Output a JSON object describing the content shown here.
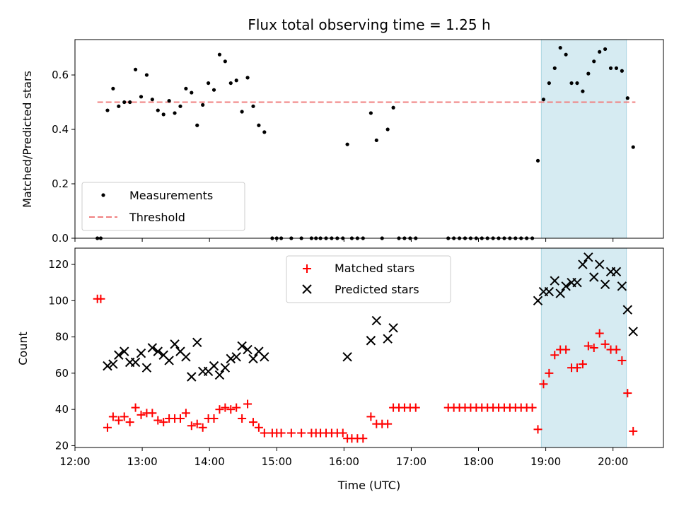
{
  "colors": {
    "measurements": "#000000",
    "threshold": "#f08080",
    "matched": "#ff0000",
    "predicted": "#000000",
    "shade": "#add8e6"
  },
  "chart_data": [
    {
      "type": "scatter",
      "title": "Flux total observing time = 1.25 h",
      "xlabel": "",
      "ylabel": "Matched/Predicted stars",
      "xlim": [
        "12:00",
        "20:45"
      ],
      "ylim": [
        0,
        0.73
      ],
      "yticks": [
        "0.0",
        "0.2",
        "0.4",
        "0.6"
      ],
      "shaded_x": [
        "18:56",
        "20:12"
      ],
      "legend": {
        "position": "lower left",
        "entries": [
          "Measurements",
          "Threshold"
        ]
      },
      "threshold": 0.5,
      "threshold_x": [
        "12:20",
        "20:20"
      ],
      "series": [
        {
          "name": "Measurements",
          "marker": "dot",
          "points": [
            [
              "12:20",
              0.0
            ],
            [
              "12:23",
              0.0
            ],
            [
              "12:29",
              0.47
            ],
            [
              "12:34",
              0.55
            ],
            [
              "12:39",
              0.485
            ],
            [
              "12:44",
              0.5
            ],
            [
              "12:49",
              0.5
            ],
            [
              "12:54",
              0.62
            ],
            [
              "12:59",
              0.52
            ],
            [
              "13:04",
              0.6
            ],
            [
              "13:09",
              0.51
            ],
            [
              "13:14",
              0.47
            ],
            [
              "13:19",
              0.455
            ],
            [
              "13:24",
              0.505
            ],
            [
              "13:29",
              0.46
            ],
            [
              "13:34",
              0.485
            ],
            [
              "13:39",
              0.55
            ],
            [
              "13:44",
              0.535
            ],
            [
              "13:49",
              0.415
            ],
            [
              "13:54",
              0.49
            ],
            [
              "13:59",
              0.57
            ],
            [
              "14:04",
              0.545
            ],
            [
              "14:09",
              0.675
            ],
            [
              "14:14",
              0.65
            ],
            [
              "14:19",
              0.57
            ],
            [
              "14:24",
              0.58
            ],
            [
              "14:29",
              0.465
            ],
            [
              "14:34",
              0.59
            ],
            [
              "14:39",
              0.485
            ],
            [
              "14:44",
              0.415
            ],
            [
              "14:49",
              0.39
            ],
            [
              "14:56",
              0.0
            ],
            [
              "15:00",
              0.0
            ],
            [
              "15:04",
              0.0
            ],
            [
              "15:13",
              0.0
            ],
            [
              "15:22",
              0.0
            ],
            [
              "15:31",
              0.0
            ],
            [
              "15:35",
              0.0
            ],
            [
              "15:39",
              0.0
            ],
            [
              "15:44",
              0.0
            ],
            [
              "15:49",
              0.0
            ],
            [
              "15:54",
              0.0
            ],
            [
              "15:59",
              0.0
            ],
            [
              "16:03",
              0.345
            ],
            [
              "16:07",
              0.0
            ],
            [
              "16:12",
              0.0
            ],
            [
              "16:17",
              0.0
            ],
            [
              "16:24",
              0.46
            ],
            [
              "16:29",
              0.36
            ],
            [
              "16:34",
              0.0
            ],
            [
              "16:39",
              0.4
            ],
            [
              "16:44",
              0.48
            ],
            [
              "16:49",
              0.0
            ],
            [
              "16:54",
              0.0
            ],
            [
              "16:59",
              0.0
            ],
            [
              "17:04",
              0.0
            ],
            [
              "17:33",
              0.0
            ],
            [
              "17:38",
              0.0
            ],
            [
              "17:43",
              0.0
            ],
            [
              "17:48",
              0.0
            ],
            [
              "17:53",
              0.0
            ],
            [
              "17:58",
              0.0
            ],
            [
              "18:03",
              0.0
            ],
            [
              "18:08",
              0.0
            ],
            [
              "18:13",
              0.0
            ],
            [
              "18:18",
              0.0
            ],
            [
              "18:23",
              0.0
            ],
            [
              "18:28",
              0.0
            ],
            [
              "18:33",
              0.0
            ],
            [
              "18:38",
              0.0
            ],
            [
              "18:43",
              0.0
            ],
            [
              "18:48",
              0.0
            ],
            [
              "18:53",
              0.285
            ],
            [
              "18:58",
              0.51
            ],
            [
              "19:03",
              0.57
            ],
            [
              "19:08",
              0.625
            ],
            [
              "19:13",
              0.7
            ],
            [
              "19:18",
              0.675
            ],
            [
              "19:23",
              0.57
            ],
            [
              "19:28",
              0.57
            ],
            [
              "19:33",
              0.54
            ],
            [
              "19:38",
              0.605
            ],
            [
              "19:43",
              0.65
            ],
            [
              "19:48",
              0.685
            ],
            [
              "19:53",
              0.695
            ],
            [
              "19:58",
              0.625
            ],
            [
              "20:03",
              0.625
            ],
            [
              "20:08",
              0.615
            ],
            [
              "20:13",
              0.515
            ],
            [
              "20:18",
              0.335
            ]
          ]
        }
      ]
    },
    {
      "type": "scatter",
      "title": "",
      "xlabel": "Time (UTC)",
      "ylabel": "Count",
      "xlim": [
        "12:00",
        "20:45"
      ],
      "ylim": [
        19,
        129
      ],
      "xticks": [
        "12:00",
        "13:00",
        "14:00",
        "15:00",
        "16:00",
        "17:00",
        "18:00",
        "19:00",
        "20:00"
      ],
      "yticks": [
        "20",
        "40",
        "60",
        "80",
        "100",
        "120"
      ],
      "shaded_x": [
        "18:56",
        "20:12"
      ],
      "legend": {
        "position": "upper center",
        "entries": [
          "Matched stars",
          "Predicted stars"
        ]
      },
      "series": [
        {
          "name": "Matched stars",
          "marker": "plus",
          "points": [
            [
              "12:20",
              101
            ],
            [
              "12:23",
              101
            ],
            [
              "12:29",
              30
            ],
            [
              "12:34",
              36
            ],
            [
              "12:39",
              34
            ],
            [
              "12:44",
              36
            ],
            [
              "12:49",
              33
            ],
            [
              "12:54",
              41
            ],
            [
              "12:59",
              37
            ],
            [
              "13:04",
              38
            ],
            [
              "13:09",
              38
            ],
            [
              "13:14",
              34
            ],
            [
              "13:19",
              33
            ],
            [
              "13:24",
              35
            ],
            [
              "13:29",
              35
            ],
            [
              "13:34",
              35
            ],
            [
              "13:39",
              38
            ],
            [
              "13:44",
              31
            ],
            [
              "13:49",
              32
            ],
            [
              "13:54",
              30
            ],
            [
              "13:59",
              35
            ],
            [
              "14:04",
              35
            ],
            [
              "14:09",
              40
            ],
            [
              "14:14",
              41
            ],
            [
              "14:19",
              40
            ],
            [
              "14:24",
              41
            ],
            [
              "14:29",
              35
            ],
            [
              "14:34",
              43
            ],
            [
              "14:39",
              33
            ],
            [
              "14:44",
              30
            ],
            [
              "14:49",
              27
            ],
            [
              "14:56",
              27
            ],
            [
              "15:00",
              27
            ],
            [
              "15:04",
              27
            ],
            [
              "15:13",
              27
            ],
            [
              "15:22",
              27
            ],
            [
              "15:31",
              27
            ],
            [
              "15:35",
              27
            ],
            [
              "15:39",
              27
            ],
            [
              "15:44",
              27
            ],
            [
              "15:49",
              27
            ],
            [
              "15:54",
              27
            ],
            [
              "15:59",
              27
            ],
            [
              "16:03",
              24
            ],
            [
              "16:07",
              24
            ],
            [
              "16:12",
              24
            ],
            [
              "16:17",
              24
            ],
            [
              "16:24",
              36
            ],
            [
              "16:29",
              32
            ],
            [
              "16:34",
              32
            ],
            [
              "16:39",
              32
            ],
            [
              "16:44",
              41
            ],
            [
              "16:49",
              41
            ],
            [
              "16:54",
              41
            ],
            [
              "16:59",
              41
            ],
            [
              "17:04",
              41
            ],
            [
              "17:33",
              41
            ],
            [
              "17:38",
              41
            ],
            [
              "17:43",
              41
            ],
            [
              "17:48",
              41
            ],
            [
              "17:53",
              41
            ],
            [
              "17:58",
              41
            ],
            [
              "18:03",
              41
            ],
            [
              "18:08",
              41
            ],
            [
              "18:13",
              41
            ],
            [
              "18:18",
              41
            ],
            [
              "18:23",
              41
            ],
            [
              "18:28",
              41
            ],
            [
              "18:33",
              41
            ],
            [
              "18:38",
              41
            ],
            [
              "18:43",
              41
            ],
            [
              "18:48",
              41
            ],
            [
              "18:53",
              29
            ],
            [
              "18:58",
              54
            ],
            [
              "19:03",
              60
            ],
            [
              "19:08",
              70
            ],
            [
              "19:13",
              73
            ],
            [
              "19:18",
              73
            ],
            [
              "19:23",
              63
            ],
            [
              "19:28",
              63
            ],
            [
              "19:33",
              65
            ],
            [
              "19:38",
              75
            ],
            [
              "19:43",
              74
            ],
            [
              "19:48",
              82
            ],
            [
              "19:53",
              76
            ],
            [
              "19:58",
              73
            ],
            [
              "20:03",
              73
            ],
            [
              "20:08",
              67
            ],
            [
              "20:13",
              49
            ],
            [
              "20:18",
              28
            ]
          ]
        },
        {
          "name": "Predicted stars",
          "marker": "x",
          "points": [
            [
              "12:29",
              64
            ],
            [
              "12:34",
              65
            ],
            [
              "12:39",
              70
            ],
            [
              "12:44",
              72
            ],
            [
              "12:49",
              66
            ],
            [
              "12:54",
              66
            ],
            [
              "12:59",
              71
            ],
            [
              "13:04",
              63
            ],
            [
              "13:09",
              74
            ],
            [
              "13:14",
              72
            ],
            [
              "13:19",
              70
            ],
            [
              "13:24",
              67
            ],
            [
              "13:29",
              76
            ],
            [
              "13:34",
              72
            ],
            [
              "13:39",
              69
            ],
            [
              "13:44",
              58
            ],
            [
              "13:49",
              77
            ],
            [
              "13:54",
              61
            ],
            [
              "13:59",
              61
            ],
            [
              "14:04",
              64
            ],
            [
              "14:09",
              59
            ],
            [
              "14:14",
              63
            ],
            [
              "14:19",
              68
            ],
            [
              "14:24",
              69
            ],
            [
              "14:29",
              75
            ],
            [
              "14:34",
              73
            ],
            [
              "14:39",
              68
            ],
            [
              "14:44",
              72
            ],
            [
              "14:49",
              69
            ],
            [
              "16:03",
              69
            ],
            [
              "16:24",
              78
            ],
            [
              "16:29",
              89
            ],
            [
              "16:39",
              79
            ],
            [
              "16:44",
              85
            ],
            [
              "18:53",
              100
            ],
            [
              "18:58",
              105
            ],
            [
              "19:03",
              105
            ],
            [
              "19:08",
              111
            ],
            [
              "19:13",
              104
            ],
            [
              "19:18",
              108
            ],
            [
              "19:23",
              110
            ],
            [
              "19:28",
              110
            ],
            [
              "19:33",
              120
            ],
            [
              "19:38",
              124
            ],
            [
              "19:43",
              113
            ],
            [
              "19:48",
              120
            ],
            [
              "19:53",
              109
            ],
            [
              "19:58",
              116
            ],
            [
              "20:03",
              116
            ],
            [
              "20:08",
              108
            ],
            [
              "20:13",
              95
            ],
            [
              "20:18",
              83
            ]
          ]
        }
      ]
    }
  ]
}
